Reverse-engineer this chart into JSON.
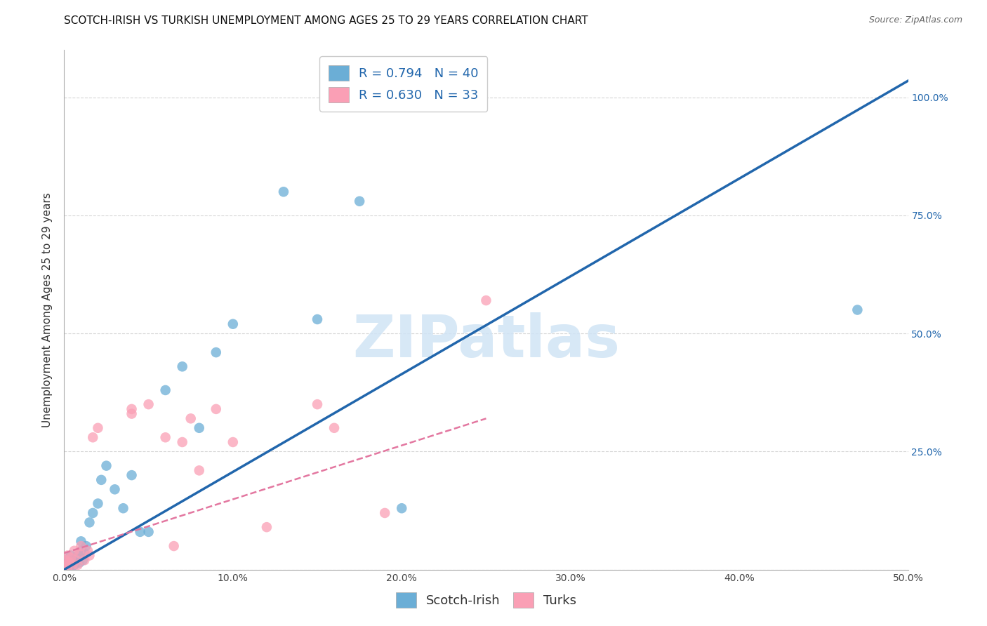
{
  "title": "SCOTCH-IRISH VS TURKISH UNEMPLOYMENT AMONG AGES 25 TO 29 YEARS CORRELATION CHART",
  "source": "Source: ZipAtlas.com",
  "ylabel": "Unemployment Among Ages 25 to 29 years",
  "xlim": [
    0,
    0.5
  ],
  "ylim": [
    0,
    1.1
  ],
  "xticks": [
    0.0,
    0.1,
    0.2,
    0.3,
    0.4,
    0.5
  ],
  "yticks": [
    0.0,
    0.25,
    0.5,
    0.75,
    1.0
  ],
  "xticklabels": [
    "0.0%",
    "10.0%",
    "20.0%",
    "30.0%",
    "40.0%",
    "50.0%"
  ],
  "yticklabels": [
    "",
    "25.0%",
    "50.0%",
    "75.0%",
    "100.0%"
  ],
  "scotch_irish_R": "0.794",
  "scotch_irish_N": "40",
  "turks_R": "0.630",
  "turks_N": "33",
  "scotch_irish_color": "#6baed6",
  "turks_color": "#fa9fb5",
  "blue_line_color": "#2166ac",
  "pink_line_color": "#e377a0",
  "grid_color": "#cccccc",
  "background_color": "#ffffff",
  "scotch_irish_x": [
    0.0,
    0.001,
    0.001,
    0.002,
    0.002,
    0.003,
    0.003,
    0.004,
    0.004,
    0.005,
    0.005,
    0.006,
    0.007,
    0.008,
    0.009,
    0.01,
    0.01,
    0.011,
    0.012,
    0.013,
    0.015,
    0.017,
    0.02,
    0.022,
    0.025,
    0.03,
    0.035,
    0.04,
    0.045,
    0.05,
    0.06,
    0.07,
    0.08,
    0.09,
    0.1,
    0.13,
    0.15,
    0.175,
    0.2,
    0.47
  ],
  "scotch_irish_y": [
    0.0,
    0.005,
    0.01,
    0.015,
    0.02,
    0.005,
    0.025,
    0.01,
    0.03,
    0.015,
    0.02,
    0.01,
    0.025,
    0.03,
    0.015,
    0.04,
    0.06,
    0.02,
    0.035,
    0.05,
    0.1,
    0.12,
    0.14,
    0.19,
    0.22,
    0.17,
    0.13,
    0.2,
    0.08,
    0.08,
    0.38,
    0.43,
    0.3,
    0.46,
    0.52,
    0.8,
    0.53,
    0.78,
    0.13,
    0.55
  ],
  "turks_x": [
    0.0,
    0.001,
    0.001,
    0.002,
    0.002,
    0.003,
    0.004,
    0.005,
    0.006,
    0.007,
    0.008,
    0.009,
    0.01,
    0.012,
    0.014,
    0.015,
    0.017,
    0.02,
    0.04,
    0.04,
    0.05,
    0.06,
    0.065,
    0.07,
    0.075,
    0.08,
    0.09,
    0.1,
    0.12,
    0.15,
    0.16,
    0.19,
    0.25
  ],
  "turks_y": [
    0.0,
    0.01,
    0.02,
    0.005,
    0.03,
    0.015,
    0.025,
    0.01,
    0.04,
    0.02,
    0.01,
    0.035,
    0.05,
    0.02,
    0.04,
    0.03,
    0.28,
    0.3,
    0.33,
    0.34,
    0.35,
    0.28,
    0.05,
    0.27,
    0.32,
    0.21,
    0.34,
    0.27,
    0.09,
    0.35,
    0.3,
    0.12,
    0.57
  ],
  "blue_line_x": [
    0.0,
    0.5
  ],
  "blue_line_y": [
    0.0,
    1.035
  ],
  "pink_line_x": [
    0.0,
    0.25
  ],
  "pink_line_y": [
    0.035,
    0.32
  ],
  "legend_labels": [
    "Scotch-Irish",
    "Turks"
  ],
  "watermark": "ZIPatlas",
  "watermark_color": "#d0e4f5",
  "title_fontsize": 11,
  "axis_label_fontsize": 11,
  "tick_fontsize": 10,
  "legend_fontsize": 13,
  "source_fontsize": 9
}
